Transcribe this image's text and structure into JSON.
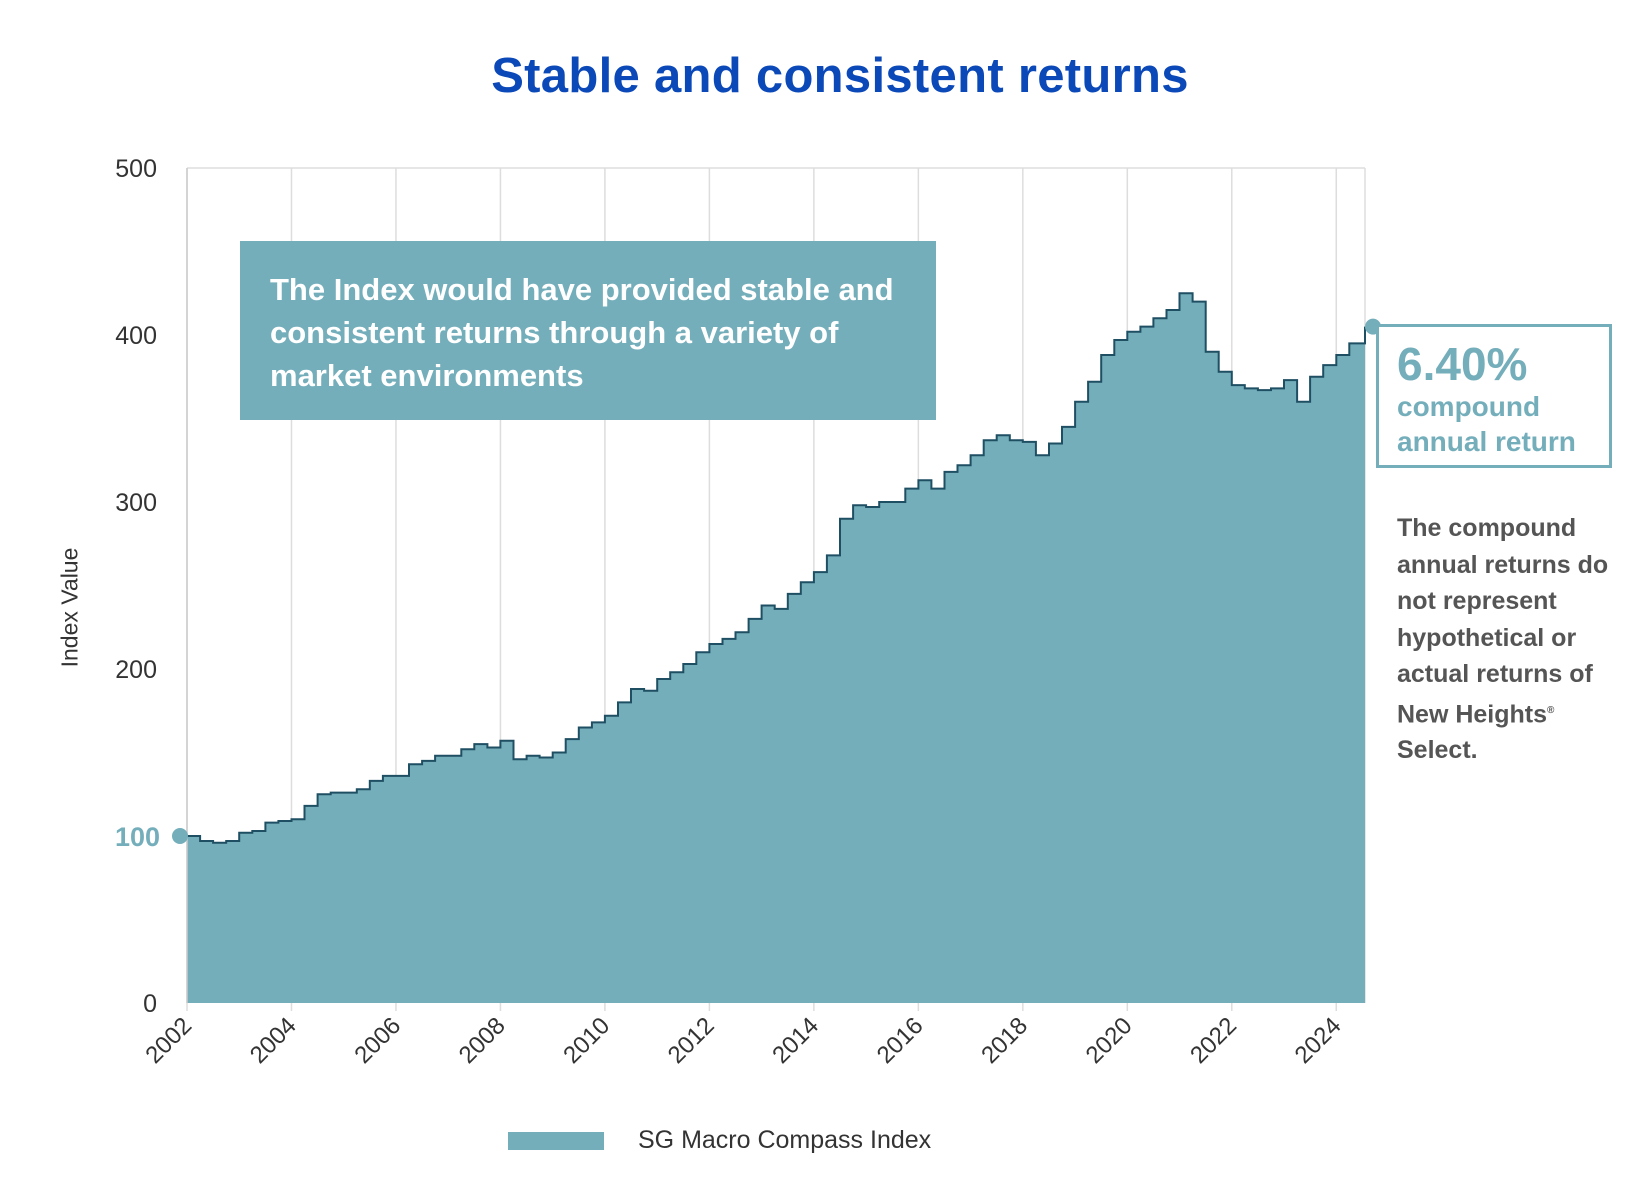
{
  "chart_data": {
    "type": "area",
    "title": "Stable and consistent returns",
    "ylabel": "Index Value",
    "xlabel": "",
    "ylim": [
      0,
      500
    ],
    "yticks": [
      0,
      100,
      200,
      300,
      400,
      500
    ],
    "xlim": [
      2002,
      2024.55
    ],
    "xticks": [
      "2002",
      "2004",
      "2006",
      "2008",
      "2010",
      "2012",
      "2014",
      "2016",
      "2018",
      "2020",
      "2022",
      "2024"
    ],
    "grid": "vertical",
    "legend_position": "bottom",
    "fill_color": "#74aebb",
    "line_color": "#1f4f63",
    "highlight_color": "#74aebb",
    "start_label": "100",
    "series": [
      {
        "name": "SG Macro Compass Index",
        "x": [
          2002.0,
          2002.25,
          2002.5,
          2002.75,
          2003.0,
          2003.25,
          2003.5,
          2003.75,
          2004.0,
          2004.25,
          2004.5,
          2004.75,
          2005.0,
          2005.25,
          2005.5,
          2005.75,
          2006.0,
          2006.25,
          2006.5,
          2006.75,
          2007.0,
          2007.25,
          2007.5,
          2007.75,
          2008.0,
          2008.25,
          2008.5,
          2008.75,
          2009.0,
          2009.25,
          2009.5,
          2009.75,
          2010.0,
          2010.25,
          2010.5,
          2010.75,
          2011.0,
          2011.25,
          2011.5,
          2011.75,
          2012.0,
          2012.25,
          2012.5,
          2012.75,
          2013.0,
          2013.25,
          2013.5,
          2013.75,
          2014.0,
          2014.25,
          2014.5,
          2014.75,
          2015.0,
          2015.25,
          2015.5,
          2015.75,
          2016.0,
          2016.25,
          2016.5,
          2016.75,
          2017.0,
          2017.25,
          2017.5,
          2017.75,
          2018.0,
          2018.25,
          2018.5,
          2018.75,
          2019.0,
          2019.25,
          2019.5,
          2019.75,
          2020.0,
          2020.25,
          2020.5,
          2020.75,
          2021.0,
          2021.25,
          2021.5,
          2021.75,
          2022.0,
          2022.25,
          2022.5,
          2022.75,
          2023.0,
          2023.25,
          2023.5,
          2023.75,
          2024.0,
          2024.25,
          2024.55
        ],
        "values": [
          100,
          97,
          96,
          97,
          102,
          103,
          108,
          109,
          110,
          118,
          125,
          126,
          126,
          128,
          133,
          136,
          136,
          143,
          145,
          148,
          148,
          152,
          155,
          153,
          157,
          146,
          148,
          147,
          150,
          158,
          165,
          168,
          172,
          180,
          188,
          187,
          194,
          198,
          203,
          210,
          215,
          218,
          222,
          230,
          238,
          236,
          245,
          252,
          258,
          268,
          290,
          298,
          297,
          300,
          300,
          308,
          313,
          308,
          318,
          322,
          328,
          337,
          340,
          337,
          336,
          328,
          335,
          345,
          360,
          372,
          388,
          397,
          402,
          405,
          410,
          415,
          425,
          420,
          390,
          378,
          370,
          368,
          367,
          368,
          373,
          360,
          375,
          382,
          388,
          395,
          405
        ]
      }
    ],
    "annotations": {
      "callout": "The Index would have provided stable and consistent returns through a variety of market environments",
      "cagr_value": "6.40%",
      "cagr_label": "compound annual return",
      "disclaimer_main": "The compound annual returns do not represent hypothetical or actual returns of New Heights",
      "disclaimer_mark": "®",
      "disclaimer_end": "Select."
    }
  }
}
